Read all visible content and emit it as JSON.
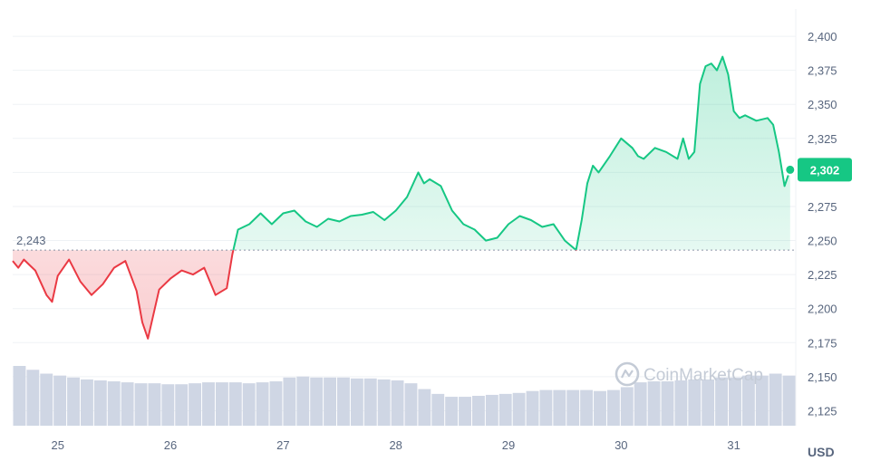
{
  "chart_data": {
    "type": "line",
    "currency_label": "USD",
    "watermark": "CoinMarketCap",
    "reference_value": 2243,
    "reference_label": "2,243",
    "current_value": 2302,
    "current_label": "2,302",
    "x_labels": [
      "25",
      "26",
      "27",
      "28",
      "29",
      "30",
      "31"
    ],
    "y_ticks": [
      2125,
      2150,
      2175,
      2200,
      2225,
      2250,
      2275,
      2300,
      2325,
      2350,
      2375,
      2400
    ],
    "y_tick_labels": [
      "2,125",
      "2,150",
      "2,175",
      "2,200",
      "2,225",
      "2,250",
      "2,275",
      "2,300",
      "2,325",
      "2,350",
      "2,375",
      "2,400"
    ],
    "ylim": [
      2114,
      2420
    ],
    "x_range": [
      24.6,
      31.55
    ],
    "grid": true,
    "colors": {
      "up": "#16c784",
      "down": "#ea3943",
      "volume": "#cfd6e4",
      "grid": "#eff2f5",
      "text": "#58667e"
    },
    "price_series": {
      "name": "",
      "x": [
        24.6,
        24.65,
        24.7,
        24.75,
        24.8,
        24.9,
        24.95,
        25.0,
        25.1,
        25.2,
        25.3,
        25.4,
        25.5,
        25.6,
        25.7,
        25.75,
        25.8,
        25.9,
        26.0,
        26.1,
        26.2,
        26.3,
        26.4,
        26.5,
        26.55,
        26.6,
        26.7,
        26.8,
        26.9,
        27.0,
        27.1,
        27.2,
        27.3,
        27.4,
        27.5,
        27.6,
        27.7,
        27.8,
        27.9,
        28.0,
        28.1,
        28.2,
        28.25,
        28.3,
        28.4,
        28.5,
        28.6,
        28.7,
        28.8,
        28.9,
        29.0,
        29.1,
        29.2,
        29.3,
        29.4,
        29.5,
        29.6,
        29.65,
        29.7,
        29.75,
        29.8,
        29.9,
        30.0,
        30.1,
        30.15,
        30.2,
        30.3,
        30.4,
        30.5,
        30.55,
        30.6,
        30.65,
        30.7,
        30.75,
        30.8,
        30.85,
        30.9,
        30.95,
        31.0,
        31.05,
        31.1,
        31.2,
        31.3,
        31.35,
        31.4,
        31.45,
        31.5
      ],
      "values": [
        2235,
        2230,
        2236,
        2232,
        2228,
        2210,
        2205,
        2224,
        2236,
        2220,
        2210,
        2218,
        2230,
        2235,
        2213,
        2190,
        2178,
        2214,
        2222,
        2228,
        2225,
        2230,
        2210,
        2215,
        2240,
        2258,
        2262,
        2270,
        2262,
        2270,
        2272,
        2264,
        2260,
        2266,
        2264,
        2268,
        2269,
        2271,
        2265,
        2272,
        2282,
        2300,
        2292,
        2295,
        2290,
        2272,
        2262,
        2258,
        2250,
        2252,
        2262,
        2268,
        2265,
        2260,
        2262,
        2250,
        2243,
        2265,
        2292,
        2305,
        2300,
        2312,
        2325,
        2318,
        2312,
        2310,
        2318,
        2315,
        2310,
        2325,
        2310,
        2315,
        2365,
        2378,
        2380,
        2375,
        2385,
        2372,
        2345,
        2340,
        2342,
        2338,
        2340,
        2335,
        2315,
        2290,
        2302
      ]
    },
    "volume_series": {
      "name": "",
      "values": [
        62,
        58,
        54,
        52,
        50,
        48,
        47,
        46,
        45,
        44,
        44,
        43,
        43,
        44,
        45,
        45,
        45,
        44,
        45,
        46,
        50,
        51,
        50,
        50,
        50,
        49,
        49,
        48,
        47,
        44,
        38,
        33,
        30,
        30,
        31,
        32,
        33,
        34,
        36,
        37,
        37,
        37,
        37,
        36,
        37,
        40,
        45,
        46,
        46,
        47,
        48,
        48,
        50,
        50,
        52,
        52,
        54,
        52
      ]
    }
  }
}
